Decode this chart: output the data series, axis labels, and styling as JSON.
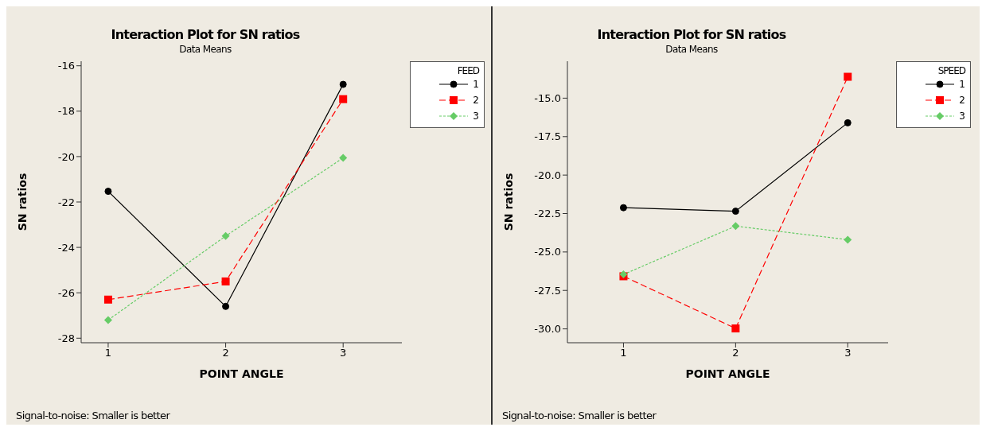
{
  "chart_data": [
    {
      "type": "line",
      "title": "Interaction Plot for SN ratios",
      "subtitle": "Data Means",
      "xlabel": "POINT ANGLE",
      "ylabel": "SN ratios",
      "legend_title": "FEED",
      "legend": "top right",
      "x": [
        1,
        2,
        3
      ],
      "xlim": [
        0.77,
        3.5
      ],
      "xticks": [
        1,
        2,
        3
      ],
      "ylim": [
        -28.2,
        -15.8
      ],
      "yticks": [
        -28,
        -26,
        -24,
        -22,
        -20,
        -18,
        -16
      ],
      "series": [
        {
          "name": "1",
          "color": "#000000",
          "marker": "circle",
          "line_style": "solid",
          "values": [
            -21.53,
            -26.6,
            -16.82
          ]
        },
        {
          "name": "2",
          "color": "#ff0000",
          "marker": "square",
          "line_style": "dashed",
          "values": [
            -26.3,
            -25.5,
            -17.47
          ]
        },
        {
          "name": "3",
          "color": "#66cc66",
          "marker": "diamond",
          "line_style": "dotted",
          "values": [
            -27.2,
            -23.5,
            -20.06
          ]
        }
      ],
      "annotations": [
        "Signal-to-noise: Smaller is better"
      ]
    },
    {
      "type": "line",
      "title": "Interaction Plot for SN ratios",
      "subtitle": "Data Means",
      "xlabel": "POINT ANGLE",
      "ylabel": "SN ratios",
      "legend_title": "SPEED",
      "legend": "top right",
      "x": [
        1,
        2,
        3
      ],
      "xlim": [
        0.5,
        3.36
      ],
      "xticks": [
        1,
        2,
        3
      ],
      "ylim": [
        -30.9,
        -12.6
      ],
      "yticks": [
        {
          "value": -30,
          "label": "-30.0"
        },
        -27.5,
        {
          "value": -25,
          "label": "-25.0"
        },
        -22.5,
        {
          "value": -20,
          "label": "-20.0"
        },
        -17.5,
        {
          "value": -15,
          "label": "-15.0"
        }
      ],
      "series": [
        {
          "name": "1",
          "color": "#000000",
          "marker": "circle",
          "line_style": "solid",
          "values": [
            -22.12,
            -22.35,
            -16.6
          ]
        },
        {
          "name": "2",
          "color": "#ff0000",
          "marker": "square",
          "line_style": "dashed",
          "values": [
            -26.58,
            -29.97,
            -13.61
          ]
        },
        {
          "name": "3",
          "color": "#66cc66",
          "marker": "diamond",
          "line_style": "dotted",
          "values": [
            -26.46,
            -23.32,
            -24.2
          ]
        }
      ],
      "annotations": [
        "Signal-to-noise: Smaller is better"
      ]
    }
  ]
}
